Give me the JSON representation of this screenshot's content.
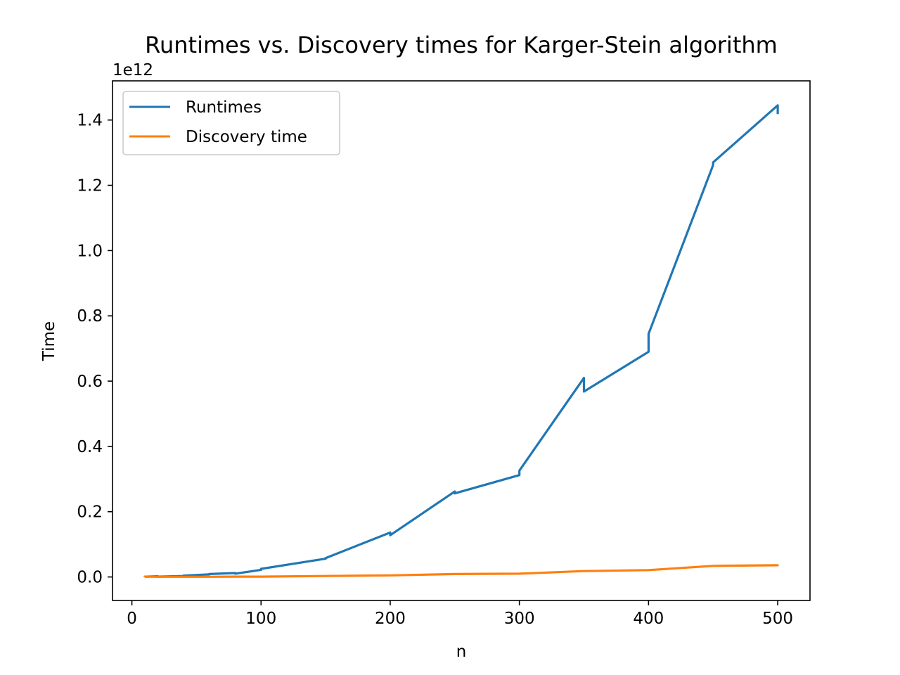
{
  "chart_data": {
    "type": "line",
    "title": "Runtimes vs. Discovery times for Karger-Stein algorithm",
    "xlabel": "n",
    "ylabel": "Time",
    "y_offset_label": "1e12",
    "xlim": [
      -15,
      525
    ],
    "ylim": [
      -0.072,
      1.52
    ],
    "x_ticks": [
      0,
      100,
      200,
      300,
      400,
      500
    ],
    "y_ticks": [
      0.0,
      0.2,
      0.4,
      0.6,
      0.8,
      1.0,
      1.2,
      1.4
    ],
    "x_tick_labels": [
      "0",
      "100",
      "200",
      "300",
      "400",
      "500"
    ],
    "y_tick_labels": [
      "0.0",
      "0.2",
      "0.4",
      "0.6",
      "0.8",
      "1.0",
      "1.2",
      "1.4"
    ],
    "grid": false,
    "legend_position": "upper left",
    "series": [
      {
        "name": "Runtimes",
        "color": "#1f77b4",
        "x": [
          10,
          10,
          20,
          20,
          40,
          40,
          60,
          60,
          80,
          80,
          100,
          100,
          150,
          150,
          200,
          200,
          250,
          250,
          300,
          300,
          350,
          350,
          400,
          400,
          450,
          450,
          500,
          500
        ],
        "y": [
          0.0,
          0.001,
          0.002,
          0.001,
          0.003,
          0.004,
          0.008,
          0.009,
          0.012,
          0.01,
          0.022,
          0.025,
          0.056,
          0.058,
          0.136,
          0.128,
          0.262,
          0.256,
          0.312,
          0.326,
          0.61,
          0.568,
          0.69,
          0.745,
          1.262,
          1.27,
          1.445,
          1.418
        ]
      },
      {
        "name": "Discovery time",
        "color": "#ff7f0e",
        "x": [
          10,
          10,
          20,
          40,
          60,
          80,
          100,
          150,
          200,
          250,
          300,
          350,
          400,
          450,
          500,
          500
        ],
        "y": [
          0.0,
          0.001,
          0.0005,
          0.0005,
          0.0005,
          0.001,
          0.001,
          0.003,
          0.005,
          0.009,
          0.01,
          0.018,
          0.021,
          0.034,
          0.036,
          0.038
        ]
      }
    ]
  }
}
